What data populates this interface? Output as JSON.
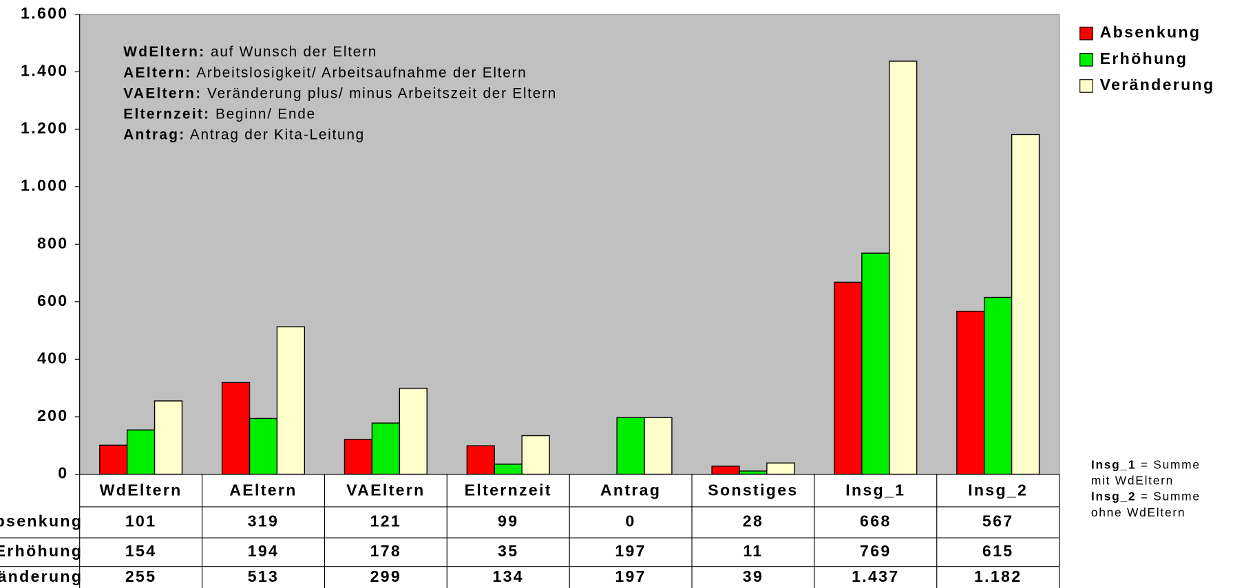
{
  "chart_data": {
    "type": "bar",
    "categories": [
      "WdEltern",
      "AEltern",
      "VAEltern",
      "Elternzeit",
      "Antrag",
      "Sonstiges",
      "Insg_1",
      "Insg_2"
    ],
    "series": [
      {
        "name": "Absenkung",
        "color": "#ff0000",
        "values": [
          101,
          319,
          121,
          99,
          0,
          28,
          668,
          567
        ],
        "value_labels": [
          "101",
          "319",
          "121",
          "99",
          "0",
          "28",
          "668",
          "567"
        ]
      },
      {
        "name": "Erhöhung",
        "color": "#00ee00",
        "values": [
          154,
          194,
          178,
          35,
          197,
          11,
          769,
          615
        ],
        "value_labels": [
          "154",
          "194",
          "178",
          "35",
          "197",
          "11",
          "769",
          "615"
        ]
      },
      {
        "name": "Veränderung",
        "color": "#ffffcc",
        "values": [
          255,
          513,
          299,
          134,
          197,
          39,
          1437,
          1182
        ],
        "value_labels": [
          "255",
          "513",
          "299",
          "134",
          "197",
          "39",
          "1.437",
          "1.182"
        ]
      }
    ],
    "ylim": [
      0,
      1600
    ],
    "yticks": [
      0,
      200,
      400,
      600,
      800,
      {
        "value": 1000,
        "label": "1.000"
      },
      {
        "value": 1200,
        "label": "1.200"
      },
      {
        "value": 1400,
        "label": "1.400"
      },
      {
        "value": 1600,
        "label": "1.600"
      }
    ],
    "legend": "top-right",
    "plot_background": "#c0c0c0",
    "annotations": [
      {
        "term": "WdEltern:",
        "text": "auf Wunsch der Eltern"
      },
      {
        "term": "AEltern:",
        "text": "Arbeitslosigkeit/ Arbeitsaufnahme der Eltern"
      },
      {
        "term": "VAEltern:",
        "text": "Veränderung plus/ minus Arbeitszeit der Eltern"
      },
      {
        "term": "Elternzeit:",
        "text": "Beginn/ Ende"
      },
      {
        "term": "Antrag:",
        "text": "Antrag der Kita-Leitung"
      }
    ],
    "notes": [
      {
        "term": "Insg_1",
        "text": "= Summe mit WdEltern"
      },
      {
        "term": "Insg_2",
        "text": "= Summe ohne WdEltern"
      }
    ]
  }
}
